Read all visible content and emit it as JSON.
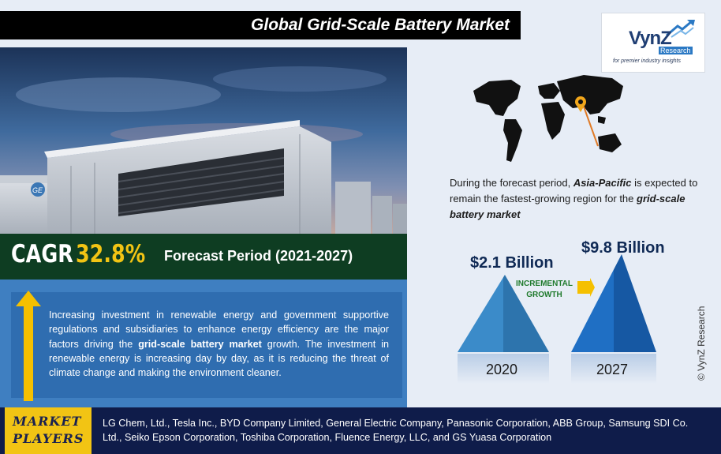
{
  "title": "Global Grid-Scale Battery Market",
  "logo": {
    "brand": "VynZ",
    "sub": "Research",
    "tagline": "for premier industry insights"
  },
  "photo": {
    "ge_mark": "GE"
  },
  "region": {
    "text_prefix": "During the forecast period, ",
    "highlight": "Asia-Pacific",
    "text_mid": " is expected to remain the fastest-growing region for the ",
    "highlight2": "grid-scale battery market"
  },
  "cagr": {
    "label": "CAGR",
    "value": "32.8%",
    "forecast": "Forecast Period (2021-2027)"
  },
  "description": {
    "part1": "Increasing investment in renewable energy and government supportive regulations and subsidiaries to enhance energy efficiency are the major factors driving the ",
    "bold": "grid-scale battery market",
    "part2": " growth. The investment in renewable energy is increasing day by day, as it is reducing the threat of climate change and making the environment cleaner."
  },
  "market_size": {
    "start_value": "$2.1 Billion",
    "end_value": "$9.8 Billion",
    "incremental_line1": "INCREMENTAL",
    "incremental_line2": "GROWTH",
    "start_year": "2020",
    "end_year": "2027"
  },
  "copyright": "© VynZ Research",
  "players": {
    "label_line1": "MARKET",
    "label_line2": "PLAYERS",
    "list": "LG Chem, Ltd., Tesla Inc., BYD Company Limited, General Electric Company, Panasonic Corporation, ABB Group, Samsung SDI Co. Ltd., Seiko Epson Corporation, Toshiba Corporation, Fluence Energy, LLC, and GS Yuasa Corporation"
  },
  "colors": {
    "title_bg": "#000000",
    "cagr_bg": "#0e3d22",
    "cagr_accent": "#f2c414",
    "panel_blue": "#2f6db0",
    "players_bg": "#0f1c4a",
    "players_label_bg": "#f2c414",
    "pyramid_2020": "#3a87c4",
    "pyramid_2027": "#1a64b8",
    "incremental_green": "#1f7a2c",
    "arrow_yellow": "#f5c000"
  }
}
